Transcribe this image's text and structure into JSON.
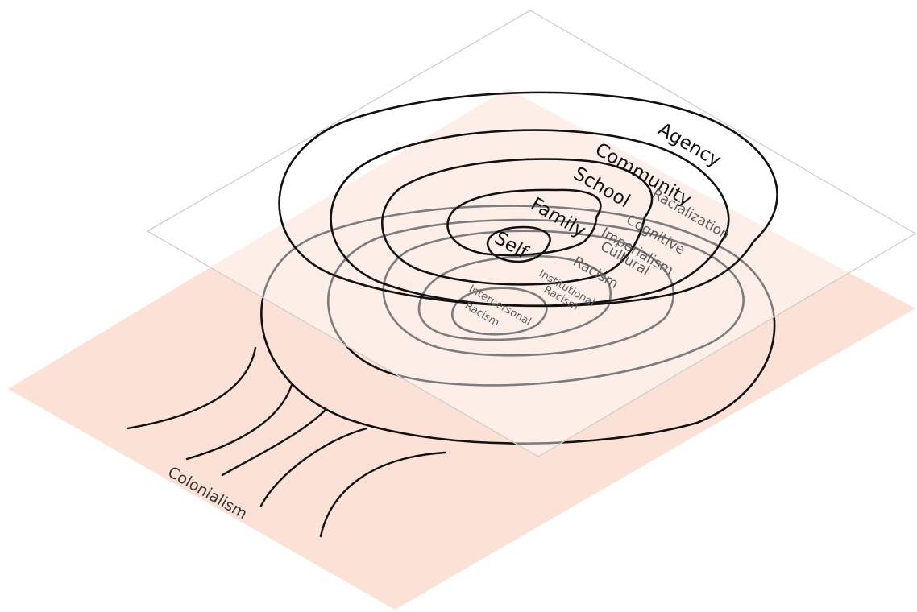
{
  "upper_plane": {
    "labels": {
      "agency": "Agency",
      "community": "Community",
      "school": "School",
      "family": "Family",
      "self": "Self"
    },
    "fill": "#ffffff",
    "stroke": "#cfcfcf"
  },
  "lower_plane": {
    "labels": {
      "racialization": "Racialization",
      "cognitive_imperialism_1": "Cognitive",
      "cognitive_imperialism_2": "Imperialism",
      "cultural_racism_1": "Cultural",
      "cultural_racism_2": "Racism",
      "institutional_racism_1": "Institutional",
      "institutional_racism_2": "Racism",
      "interpersonal_racism_1": "Interpersonal",
      "interpersonal_racism_2": "Racism"
    },
    "fill": "#fbe1d6"
  },
  "colonialism": {
    "label": "Colonialism"
  },
  "colors": {
    "ring": "#111111",
    "upper_text": "#111111",
    "lower_text": "#5a5a5a"
  }
}
